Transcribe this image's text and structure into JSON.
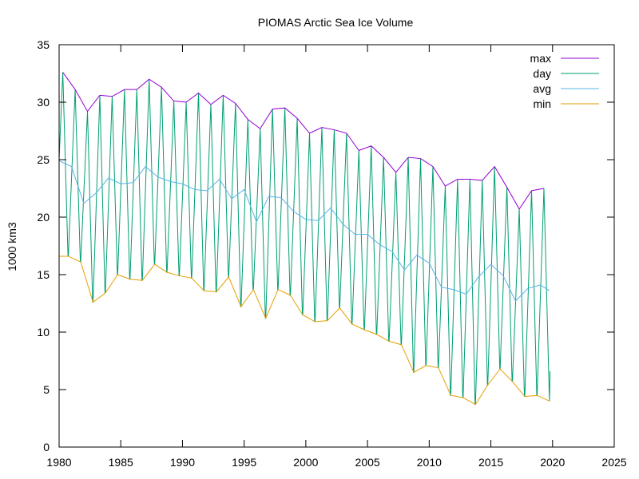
{
  "chart_data": {
    "type": "line",
    "title": "PIOMAS Arctic Sea Ice Volume",
    "xlabel": "",
    "ylabel": "1000 km3",
    "xlim": [
      1980,
      2025
    ],
    "ylim": [
      0,
      35
    ],
    "x_ticks": [
      1980,
      1985,
      1990,
      1995,
      2000,
      2005,
      2010,
      2015,
      2020,
      2025
    ],
    "y_ticks": [
      0,
      5,
      10,
      15,
      20,
      25,
      30,
      35
    ],
    "grid": false,
    "legend_position": "top-right",
    "colors": {
      "max": "#9400d3",
      "day": "#009e73",
      "avg": "#56b4e9",
      "min": "#e69f00",
      "axis": "#000000"
    },
    "years": [
      1980,
      1981,
      1982,
      1983,
      1984,
      1985,
      1986,
      1987,
      1988,
      1989,
      1990,
      1991,
      1992,
      1993,
      1994,
      1995,
      1996,
      1997,
      1998,
      1999,
      2000,
      2001,
      2002,
      2003,
      2004,
      2005,
      2006,
      2007,
      2008,
      2009,
      2010,
      2011,
      2012,
      2013,
      2014,
      2015,
      2016,
      2017,
      2018,
      2019
    ],
    "series": [
      {
        "name": "max",
        "values": [
          32.6,
          31.1,
          29.2,
          30.6,
          30.5,
          31.1,
          31.1,
          32.0,
          31.3,
          30.1,
          30.0,
          30.8,
          29.8,
          30.6,
          29.9,
          28.5,
          27.7,
          29.4,
          29.5,
          28.6,
          27.3,
          27.8,
          27.6,
          27.3,
          25.8,
          26.2,
          25.2,
          23.9,
          25.2,
          25.1,
          24.4,
          22.7,
          23.3,
          23.3,
          23.2,
          24.4,
          22.6,
          20.7,
          22.3,
          22.5
        ]
      },
      {
        "name": "min",
        "values": [
          16.6,
          16.1,
          12.6,
          13.4,
          15.0,
          14.6,
          14.5,
          15.9,
          15.2,
          14.9,
          14.7,
          13.6,
          13.5,
          14.8,
          12.2,
          13.7,
          11.2,
          13.7,
          13.2,
          11.5,
          10.9,
          11.0,
          12.1,
          10.7,
          10.2,
          9.8,
          9.2,
          8.9,
          6.5,
          7.1,
          6.9,
          4.5,
          4.3,
          3.7,
          5.4,
          6.8,
          5.7,
          4.4,
          4.5,
          5.0
        ]
      },
      {
        "name": "avg",
        "values": [
          24.9,
          24.4,
          21.2,
          22.1,
          23.4,
          22.9,
          23.0,
          24.4,
          23.5,
          23.1,
          22.9,
          22.4,
          22.3,
          23.3,
          21.6,
          22.4,
          19.6,
          21.8,
          21.7,
          20.5,
          19.8,
          19.7,
          20.8,
          19.4,
          18.5,
          18.5,
          17.6,
          17.0,
          15.4,
          16.7,
          16.0,
          13.9,
          13.7,
          13.3,
          14.8,
          15.9,
          14.9,
          12.7,
          13.8,
          14.1
        ]
      },
      {
        "name": "day",
        "values": [],
        "note_fields": []
      }
    ],
    "last_partial": {
      "year_start": 2019.75,
      "min": 4.0,
      "end": 6.6,
      "avg_end": 13.6
    }
  }
}
